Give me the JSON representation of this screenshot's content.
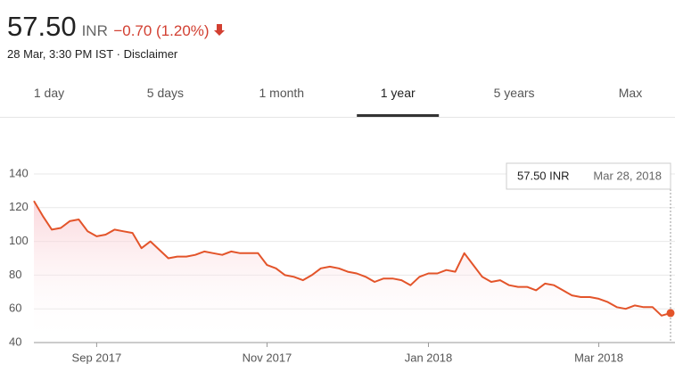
{
  "header": {
    "price": "57.50",
    "currency": "INR",
    "change": "−0.70 (1.20%)",
    "timestamp": "28 Mar, 3:30 PM IST",
    "separator": "·",
    "disclaimer": "Disclaimer"
  },
  "tabs": {
    "items": [
      "1 day",
      "5 days",
      "1 month",
      "1 year",
      "5 years",
      "Max"
    ],
    "selected": 3
  },
  "chart_data": {
    "type": "line",
    "categories": [
      null,
      null,
      null,
      null,
      null,
      null,
      null,
      "Sep 2017",
      null,
      null,
      null,
      null,
      null,
      null,
      null,
      null,
      null,
      null,
      null,
      null,
      null,
      null,
      null,
      null,
      null,
      null,
      "Nov 2017",
      null,
      null,
      null,
      null,
      null,
      null,
      null,
      null,
      null,
      null,
      null,
      null,
      null,
      null,
      null,
      null,
      null,
      "Jan 2018",
      null,
      null,
      null,
      null,
      null,
      null,
      null,
      null,
      null,
      null,
      null,
      null,
      null,
      null,
      null,
      null,
      null,
      null,
      "Mar 2018",
      null,
      null,
      null,
      null,
      null,
      null,
      null,
      null
    ],
    "series": [
      {
        "name": "Price",
        "color": "#e3542a",
        "values": [
          124,
          115,
          107,
          108,
          112,
          113,
          106,
          103,
          104,
          107,
          106,
          105,
          96,
          100,
          95,
          90,
          91,
          91,
          92,
          94,
          93,
          92,
          94,
          93,
          93,
          93,
          86,
          84,
          80,
          79,
          77,
          80,
          84,
          85,
          84,
          82,
          81,
          79,
          76,
          78,
          78,
          77,
          74,
          79,
          81,
          81,
          83,
          82,
          93,
          86,
          79,
          76,
          77,
          74,
          73,
          73,
          71,
          75,
          74,
          71,
          68,
          67,
          67,
          66,
          64,
          61,
          60,
          62,
          61,
          61,
          56,
          57.5
        ]
      }
    ],
    "ylim": [
      40,
      140
    ],
    "yticks": [
      40,
      60,
      80,
      100,
      120,
      140
    ],
    "grid": true,
    "tooltip": {
      "price": "57.50 INR",
      "date": "Mar 28, 2018"
    }
  }
}
